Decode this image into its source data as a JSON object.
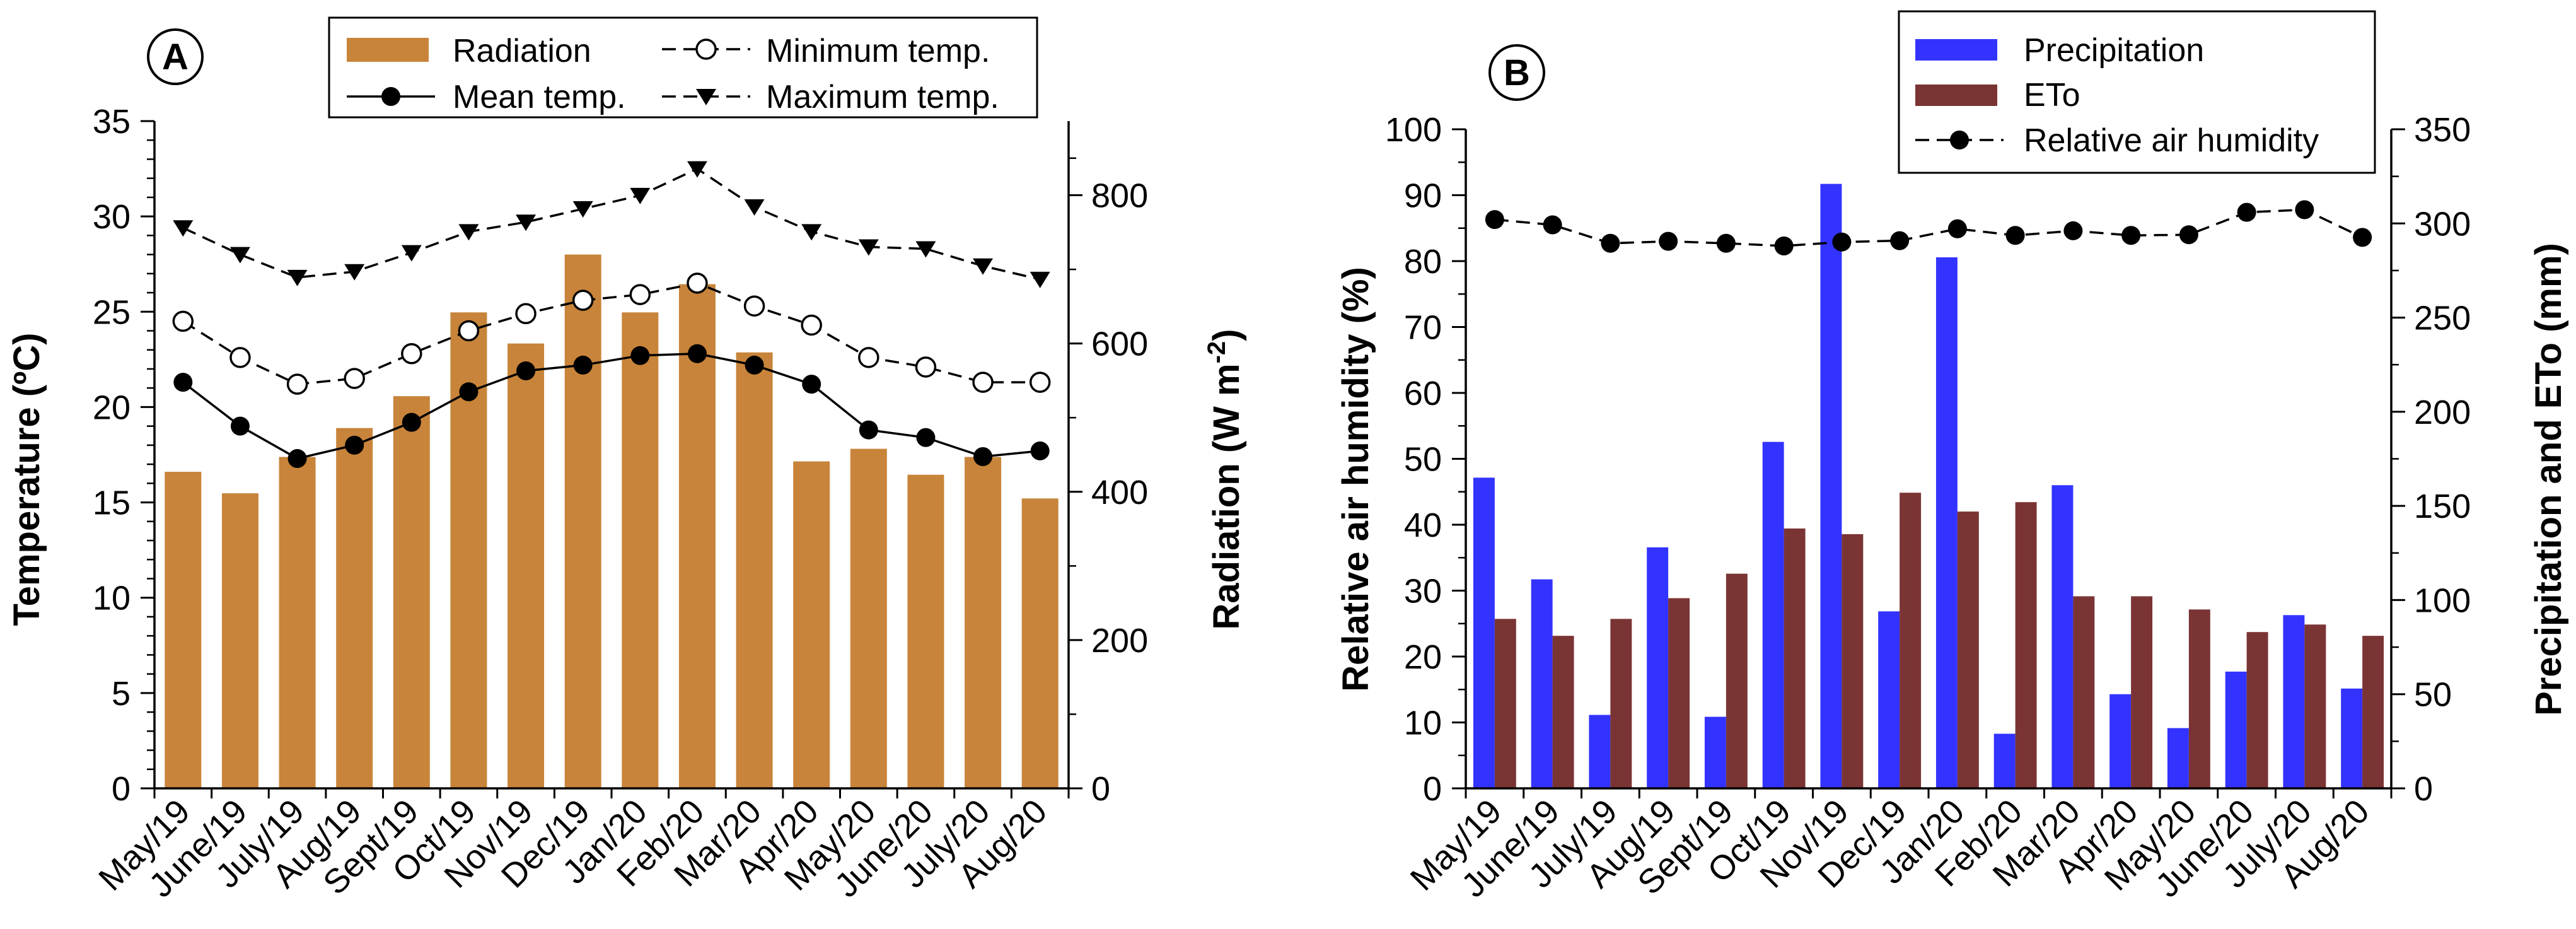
{
  "chart_data": [
    {
      "panel": "A",
      "type": "bar+line",
      "categories": [
        "May/19",
        "June/19",
        "July/19",
        "Aug/19",
        "Sept/19",
        "Oct/19",
        "Nov/19",
        "Dec/19",
        "Jan/20",
        "Feb/20",
        "Mar/20",
        "Apr/20",
        "May/20",
        "June/20",
        "July/20",
        "Aug/20"
      ],
      "bar_series": {
        "name": "Radiation",
        "axis": "right",
        "color": "#c8843a",
        "values": [
          427,
          398,
          447,
          486,
          529,
          642,
          600,
          720,
          642,
          680,
          588,
          441,
          458,
          423,
          447,
          391
        ]
      },
      "line_series": [
        {
          "name": "Minimum temp.",
          "axis": "left",
          "marker": "open-circle",
          "dash": "dashed",
          "values": [
            24.5,
            22.6,
            21.2,
            21.5,
            22.8,
            24.0,
            24.9,
            25.6,
            25.9,
            26.5,
            25.3,
            24.3,
            22.6,
            22.1,
            21.3,
            21.3
          ]
        },
        {
          "name": "Mean temp.",
          "axis": "left",
          "marker": "filled-circle",
          "dash": "solid",
          "values": [
            21.3,
            19.0,
            17.3,
            18.0,
            19.2,
            20.8,
            21.9,
            22.2,
            22.7,
            22.8,
            22.2,
            21.2,
            18.8,
            18.4,
            17.4,
            17.7
          ]
        },
        {
          "name": "Maximum temp.",
          "axis": "left",
          "marker": "filled-triangle-down",
          "dash": "dashed",
          "values": [
            29.4,
            28.0,
            26.8,
            27.1,
            28.1,
            29.2,
            29.7,
            30.4,
            31.1,
            32.5,
            30.5,
            29.2,
            28.4,
            28.3,
            27.4,
            26.7
          ]
        }
      ],
      "y_left": {
        "label_pre": "Temperature (",
        "label_unit": "ºC",
        "label_post": ")",
        "min": 0,
        "max": 35,
        "ticks": [
          "0",
          "5",
          "10",
          "15",
          "20",
          "25",
          "30",
          "35"
        ]
      },
      "y_right": {
        "label_main": "Radiation (W m",
        "label_sup": "-2",
        "label_post": ")",
        "min": 0,
        "max": 900,
        "ticks": [
          "0",
          "200",
          "400",
          "600",
          "800"
        ]
      },
      "legend": [
        "Radiation",
        "Minimum temp.",
        "Mean temp.",
        "Maximum temp."
      ],
      "legend_position": "top"
    },
    {
      "panel": "B",
      "type": "bar+line",
      "categories": [
        "May/19",
        "June/19",
        "July/19",
        "Aug/19",
        "Sept/19",
        "Oct/19",
        "Nov/19",
        "Dec/19",
        "Jan/20",
        "Feb/20",
        "Mar/20",
        "Apr/20",
        "May/20",
        "June/20",
        "July/20",
        "Aug/20"
      ],
      "bar_series": [
        {
          "name": "Precipitation",
          "axis": "right",
          "color": "#3333ff",
          "values": [
            165,
            111,
            39,
            128,
            38,
            184,
            321,
            94,
            282,
            29,
            161,
            50,
            32,
            62,
            92,
            53
          ]
        },
        {
          "name": "ETo",
          "axis": "right",
          "color": "#7b3434",
          "values": [
            90,
            81,
            90,
            101,
            114,
            138,
            135,
            157,
            147,
            152,
            102,
            102,
            95,
            83,
            87,
            81
          ]
        }
      ],
      "line_series": [
        {
          "name": "Relative air humidity",
          "axis": "left",
          "marker": "filled-circle",
          "dash": "dashed",
          "values": [
            86.3,
            85.5,
            82.7,
            83.0,
            82.7,
            82.3,
            82.9,
            83.1,
            84.9,
            83.9,
            84.6,
            83.9,
            84.0,
            87.4,
            87.8,
            83.6
          ]
        }
      ],
      "y_left": {
        "label": "Relative air humidity (%)",
        "min": 0,
        "max": 100,
        "ticks": [
          "0",
          "10",
          "20",
          "30",
          "40",
          "50",
          "60",
          "70",
          "80",
          "90",
          "100"
        ]
      },
      "y_right": {
        "label": "Precipitation and ETo (mm)",
        "min": 0,
        "max": 350,
        "ticks": [
          "0",
          "50",
          "100",
          "150",
          "200",
          "250",
          "300",
          "350"
        ]
      },
      "legend": [
        "Precipitation",
        "ETo",
        "Relative air humidity"
      ],
      "legend_position": "top-right"
    }
  ]
}
